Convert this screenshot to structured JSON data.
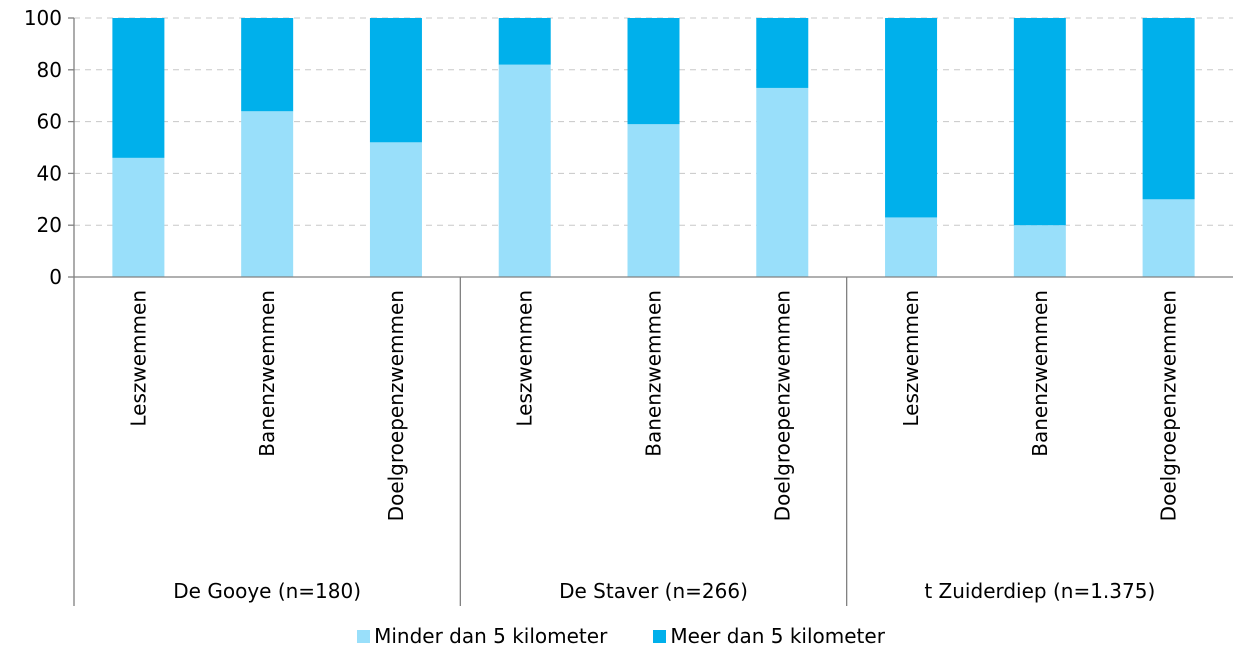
{
  "chart_data": {
    "type": "bar",
    "stacked": true,
    "groups": [
      {
        "label": "De Gooye (n=180)",
        "categories": [
          "Leszwemmen",
          "Banenzwemmen",
          "Doelgroepenzwemmen"
        ]
      },
      {
        "label": "De Staver (n=266)",
        "categories": [
          "Leszwemmen",
          "Banenzwemmen",
          "Doelgroepenzwemmen"
        ]
      },
      {
        "label": "t Zuiderdiep (n=1.375)",
        "categories": [
          "Leszwemmen",
          "Banenzwemmen",
          "Doelgroepenzwemmen"
        ]
      }
    ],
    "series": [
      {
        "name": "Minder dan 5 kilometer",
        "color": "#99dffa",
        "values": [
          46,
          64,
          52,
          82,
          59,
          73,
          23,
          20,
          30
        ]
      },
      {
        "name": "Meer dan 5 kilometer",
        "color": "#00b0eb",
        "values": [
          54,
          36,
          48,
          18,
          41,
          27,
          77,
          80,
          70
        ]
      }
    ],
    "ylim": [
      0,
      100
    ],
    "yticks": [
      0,
      20,
      40,
      60,
      80,
      100
    ],
    "grid": true,
    "legend_position": "bottom"
  }
}
